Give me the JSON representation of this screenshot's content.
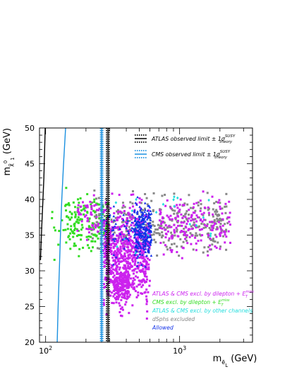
{
  "chart_data": {
    "type": "scatter",
    "title": "",
    "xlabel": "m",
    "xlabel_sub": "ẽ",
    "xlabel_sub2": "L",
    "xlabel_unit": "(GeV)",
    "ylabel": "m",
    "ylabel_sub": "χ̃",
    "ylabel_sub2": "1",
    "ylabel_sup": "0",
    "ylabel_unit": "(GeV)",
    "xscale": "log",
    "xlim": [
      90,
      3500
    ],
    "ylim": [
      20,
      50
    ],
    "x_ticks": [
      {
        "value": 100,
        "base": "10",
        "exp": "2"
      },
      {
        "value": 1000,
        "base": "10",
        "exp": "3"
      }
    ],
    "y_ticks": [
      20,
      25,
      30,
      35,
      40,
      45,
      50
    ],
    "grid": false,
    "legend_position": "top-right",
    "limit_lines": [
      {
        "name": "ATLAS observed limit ± 1σ",
        "sup": "SUSY",
        "sub": "theory",
        "color": "#000000",
        "central": 292,
        "minus": 285,
        "plus": 298
      },
      {
        "name": "CMS observed limit ± 1σ",
        "sup": "SUSY",
        "sub": "theory",
        "color": "#1a90e0",
        "central": 262,
        "minus": 257,
        "plus": 267
      }
    ],
    "curves": [
      {
        "name": "ATLAS low-mass contour",
        "color": "#000000",
        "points": [
          [
            91.5,
            31.5
          ],
          [
            93.5,
            36
          ],
          [
            95.5,
            40
          ],
          [
            97,
            43
          ],
          [
            98,
            46
          ],
          [
            98.8,
            48.5
          ],
          [
            99.3,
            50
          ]
        ]
      },
      {
        "name": "CMS low-mass contour",
        "color": "#1a90e0",
        "points": [
          [
            122,
            20
          ],
          [
            124,
            25
          ],
          [
            126.5,
            30
          ],
          [
            129,
            35
          ],
          [
            132,
            40
          ],
          [
            136,
            45
          ],
          [
            141,
            50
          ]
        ]
      }
    ],
    "series": [
      {
        "name": "ATLAS & CMS excl. by dilepton + E",
        "sup": "miss",
        "sub": "T",
        "color": "#cc22ee",
        "clusters": [
          {
            "x": [
              270,
              600
            ],
            "y": [
              22,
              42
            ],
            "n": 700
          },
          {
            "x": [
              320,
              420
            ],
            "y": [
              25,
              31
            ],
            "n": 160
          },
          {
            "x": [
              700,
              2400
            ],
            "y": [
              31,
              42
            ],
            "n": 180
          },
          {
            "x": [
              170,
              280
            ],
            "y": [
              33,
              42
            ],
            "n": 60
          }
        ]
      },
      {
        "name": "CMS excl. by dilepton + E",
        "sup": "miss",
        "sub": "T",
        "color": "#33dd22",
        "clusters": [
          {
            "x": [
              140,
              300
            ],
            "y": [
              31,
              42
            ],
            "n": 170
          },
          {
            "x": [
              110,
              150
            ],
            "y": [
              29,
              42
            ],
            "n": 10
          }
        ]
      },
      {
        "name": "ATLAS & CMS excl. by other channels",
        "color": "#22dddd",
        "clusters": [
          {
            "x": [
              300,
              1900
            ],
            "y": [
              30,
              43
            ],
            "n": 24
          }
        ]
      },
      {
        "name": "dSphs excluded",
        "color": "#888888",
        "clusters": [
          {
            "x": [
              220,
              2300
            ],
            "y": [
              31,
              42
            ],
            "n": 380
          }
        ]
      },
      {
        "name": "Allowed",
        "color": "#1030e8",
        "clusters": [
          {
            "x": [
              460,
              620
            ],
            "y": [
              30,
              41
            ],
            "n": 220
          },
          {
            "x": [
              270,
              560
            ],
            "y": [
              30,
              41
            ],
            "n": 70
          }
        ]
      }
    ]
  }
}
